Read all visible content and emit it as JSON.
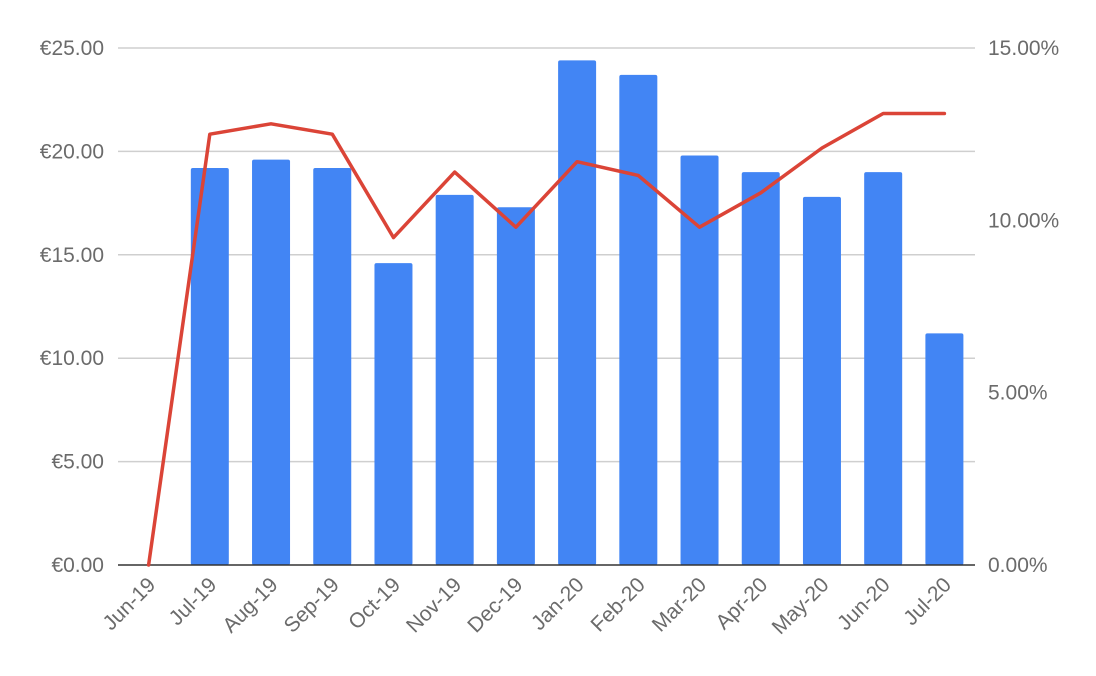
{
  "chart_data": {
    "type": "bar",
    "categories": [
      "Jun-19",
      "Jul-19",
      "Aug-19",
      "Sep-19",
      "Oct-19",
      "Nov-19",
      "Dec-19",
      "Jan-20",
      "Feb-20",
      "Mar-20",
      "Apr-20",
      "May-20",
      "Jun-20",
      "Jul-20"
    ],
    "series": [
      {
        "type": "bar",
        "axis": "left",
        "color": "#4285f4",
        "values": [
          0,
          19.2,
          19.6,
          19.2,
          14.6,
          17.9,
          17.3,
          24.4,
          23.7,
          19.8,
          19.0,
          17.8,
          19.0,
          11.2
        ]
      },
      {
        "type": "line",
        "axis": "right",
        "color": "#db4437",
        "values": [
          0,
          12.5,
          12.8,
          12.5,
          9.5,
          11.4,
          9.8,
          11.7,
          11.3,
          9.8,
          10.8,
          12.1,
          13.1,
          13.1
        ]
      }
    ],
    "y_left": {
      "min": 0,
      "max": 25,
      "ticks": [
        0,
        5,
        10,
        15,
        20,
        25
      ],
      "tick_labels": [
        "€0.00",
        "€5.00",
        "€10.00",
        "€15.00",
        "€20.00",
        "€25.00"
      ]
    },
    "y_right": {
      "min": 0,
      "max": 15,
      "ticks": [
        0,
        5,
        10,
        15
      ],
      "tick_labels": [
        "0.00%",
        "5.00%",
        "10.00%",
        "15.00%"
      ]
    },
    "grid": true,
    "legend": "none",
    "title": "",
    "xlabel": "",
    "ylabel": ""
  }
}
